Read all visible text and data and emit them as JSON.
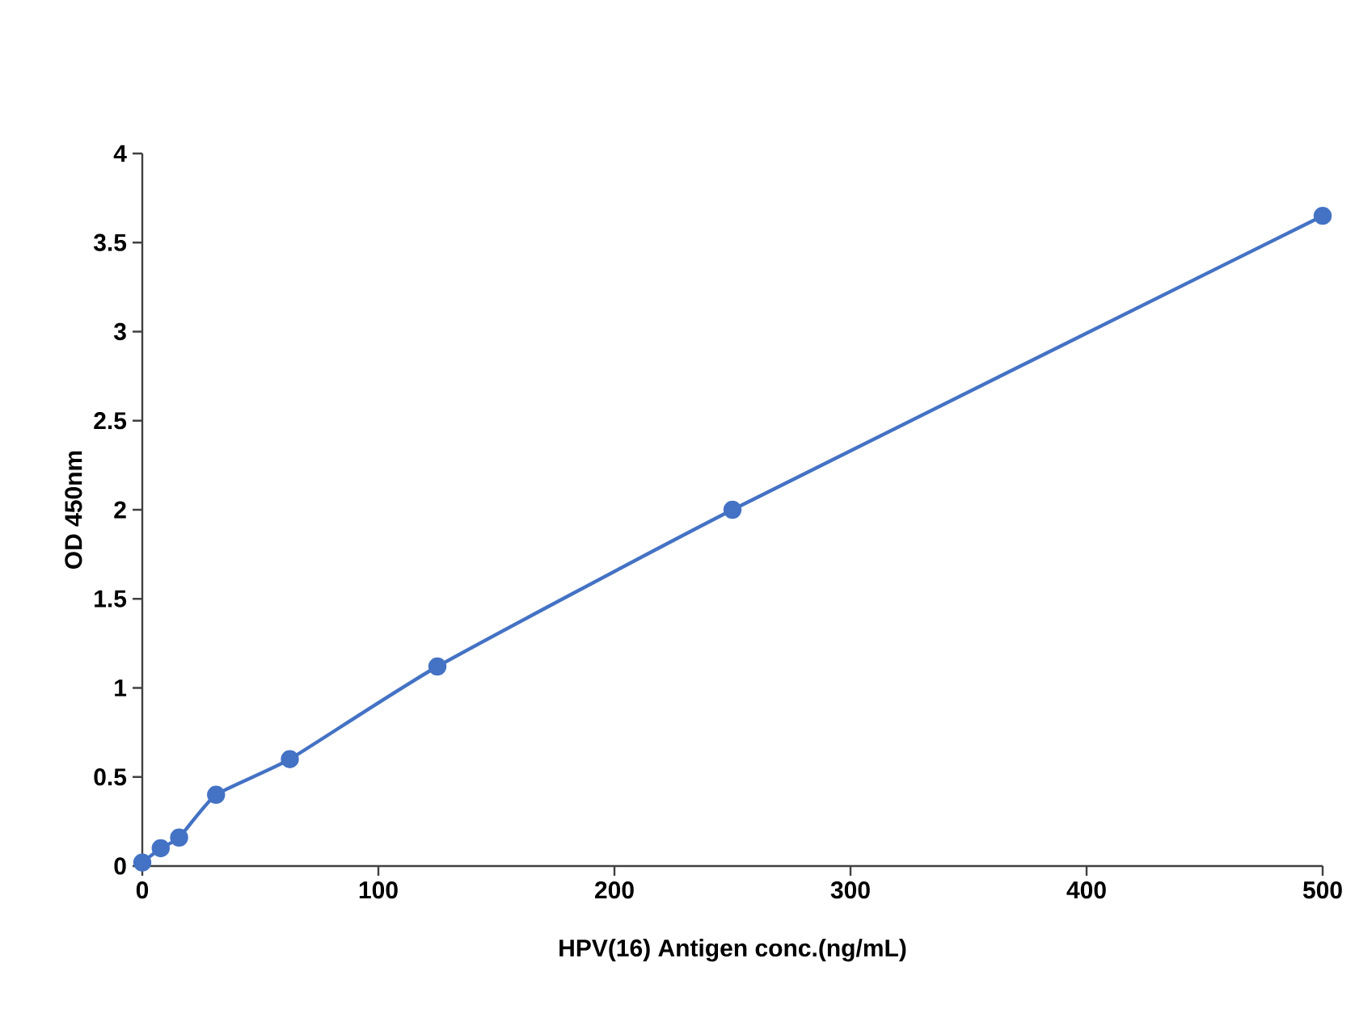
{
  "chart_data": {
    "type": "line",
    "xlabel": "HPV(16) Antigen conc.(ng/mL)",
    "ylabel": "OD 450nm",
    "series": [
      {
        "color": "#4472c4",
        "x": [
          0,
          7.8,
          15.6,
          31.25,
          62.5,
          125,
          250,
          500
        ],
        "values": [
          0.02,
          0.1,
          0.16,
          0.4,
          0.6,
          1.12,
          2.0,
          3.65
        ]
      }
    ],
    "marker": "circle",
    "line_style": "solid",
    "xlim": [
      0,
      500
    ],
    "ylim": [
      0,
      4
    ],
    "xticks": [
      0,
      100,
      200,
      300,
      400,
      500
    ],
    "yticks": [
      0,
      0.5,
      1,
      1.5,
      2,
      2.5,
      3,
      3.5,
      4
    ]
  }
}
